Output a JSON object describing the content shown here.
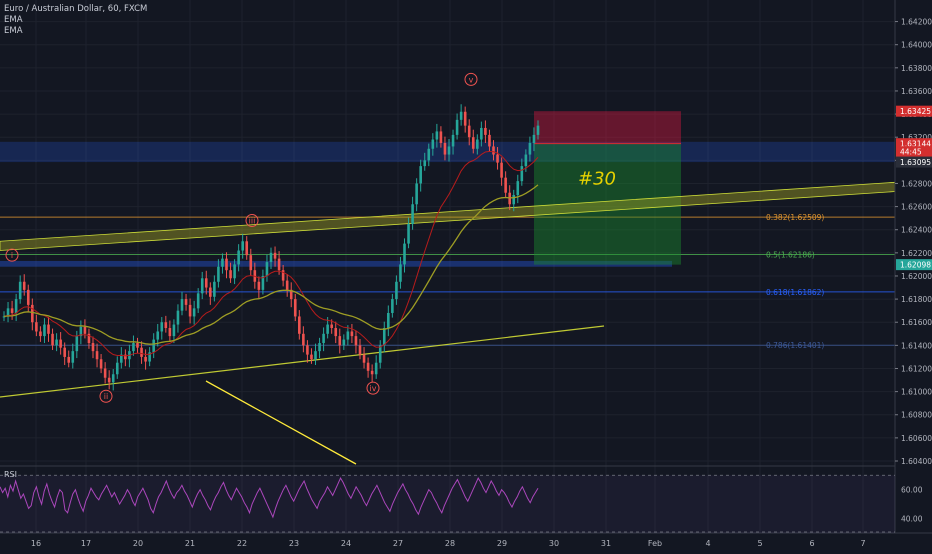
{
  "chart_data": {
    "type": "candlestick",
    "symbol_title": "Euro / Australian Dollar, 60, FXCM",
    "indicators": [
      "EMA",
      "EMA"
    ],
    "y_ticks": [
      "1.64200",
      "1.64000",
      "1.63800",
      "1.63600",
      "1.63400",
      "1.63200",
      "1.63000",
      "1.62800",
      "1.62600",
      "1.62400",
      "1.62200",
      "1.62000",
      "1.61800",
      "1.61600",
      "1.61400",
      "1.61200",
      "1.61000",
      "1.60800",
      "1.60600",
      "1.60400"
    ],
    "y_range": [
      1.604,
      1.643
    ],
    "x_ticks": [
      "16",
      "17",
      "20",
      "21",
      "22",
      "23",
      "24",
      "27",
      "28",
      "29",
      "30",
      "31",
      "Feb",
      "4",
      "5",
      "6",
      "7"
    ],
    "price_labels": [
      {
        "value": "1.63425",
        "color": "#d32f2f",
        "price": 1.63425
      },
      {
        "value": "1.63144",
        "color": "#d32f2f",
        "price": 1.63144
      },
      {
        "value": "44:45",
        "color": "#d32f2f",
        "price": 1.63075
      },
      {
        "value": "1.63095",
        "color": "#2a2e39",
        "price": 1.62985
      },
      {
        "value": "1.62098",
        "color": "#26a69a",
        "price": 1.62098
      }
    ],
    "fib_levels": [
      {
        "label": "0.382(1.62509)",
        "price": 1.62509,
        "color": "#e0952f"
      },
      {
        "label": "0.5(1.62186)",
        "price": 1.62186,
        "color": "#4caf50"
      },
      {
        "label": "0.618(1.61862)",
        "price": 1.61862,
        "color": "#2962ff"
      },
      {
        "label": "0.786(1.61401)",
        "price": 1.61401,
        "color": "#3d5a99"
      }
    ],
    "wave_labels": [
      "i",
      "ii",
      "iii",
      "iv",
      "v"
    ],
    "trade_label": "#30",
    "rsi": {
      "label": "RSI",
      "ticks": [
        "60.00",
        "40.00"
      ],
      "range": [
        30,
        75
      ],
      "values": [
        62,
        58,
        61,
        55,
        63,
        59,
        66,
        60,
        54,
        57,
        52,
        47,
        49,
        58,
        62,
        55,
        50,
        59,
        64,
        57,
        52,
        48,
        55,
        60,
        58,
        46,
        44,
        51,
        57,
        60,
        54,
        49,
        45,
        52,
        56,
        61,
        58,
        55,
        53,
        57,
        60,
        63,
        59,
        55,
        58,
        54,
        50,
        53,
        56,
        60,
        57,
        52,
        49,
        55,
        58,
        61,
        57,
        53,
        47,
        44,
        50,
        55,
        58,
        62,
        66,
        61,
        57,
        54,
        58,
        60,
        63,
        59,
        56,
        52,
        48,
        53,
        57,
        60,
        56,
        53,
        49,
        46,
        51,
        55,
        58,
        62,
        65,
        60,
        56,
        53,
        57,
        61,
        58,
        55,
        51,
        48,
        44,
        50,
        54,
        58,
        61,
        57,
        53,
        49,
        45,
        41,
        47,
        52,
        56,
        60,
        63,
        59,
        55,
        52,
        56,
        60,
        63,
        66,
        61,
        57,
        53,
        50,
        47,
        52,
        55,
        58,
        62,
        59,
        56,
        60,
        64,
        68,
        65,
        61,
        57,
        54,
        58,
        62,
        59,
        56,
        52,
        49,
        53,
        57,
        60,
        63,
        59,
        55,
        51,
        48,
        45,
        50,
        54,
        58,
        61,
        64,
        60,
        57,
        53,
        50,
        46,
        43,
        48,
        52,
        56,
        60,
        58,
        54,
        51,
        47,
        44,
        49,
        53,
        57,
        61,
        64,
        67,
        63,
        59,
        55,
        52,
        56,
        60,
        64,
        68,
        65,
        61,
        58,
        62,
        66,
        63,
        59,
        56,
        60,
        58,
        55,
        51,
        48,
        52,
        55,
        59,
        62,
        58,
        54,
        51,
        55,
        58,
        61
      ]
    },
    "price_series": [
      1.6165,
      1.6172,
      1.6168,
      1.618,
      1.6195,
      1.6188,
      1.6175,
      1.616,
      1.6152,
      1.6148,
      1.6158,
      1.615,
      1.614,
      1.6145,
      1.6138,
      1.613,
      1.6125,
      1.6135,
      1.6148,
      1.6156,
      1.615,
      1.6142,
      1.6135,
      1.6128,
      1.612,
      1.6112,
      1.6108,
      1.6115,
      1.6125,
      1.6132,
      1.6128,
      1.6135,
      1.6142,
      1.6138,
      1.613,
      1.6126,
      1.6134,
      1.6145,
      1.6152,
      1.616,
      1.6155,
      1.6148,
      1.6158,
      1.617,
      1.618,
      1.6175,
      1.6165,
      1.6172,
      1.6185,
      1.6198,
      1.619,
      1.6182,
      1.6195,
      1.6208,
      1.6215,
      1.6205,
      1.6198,
      1.621,
      1.6222,
      1.623,
      1.6218,
      1.6205,
      1.6195,
      1.6188,
      1.62,
      1.6212,
      1.622,
      1.6215,
      1.6205,
      1.6196,
      1.6188,
      1.618,
      1.6165,
      1.615,
      1.614,
      1.6132,
      1.6128,
      1.6135,
      1.6142,
      1.615,
      1.6158,
      1.6155,
      1.6148,
      1.614,
      1.6145,
      1.6152,
      1.6148,
      1.614,
      1.6132,
      1.6125,
      1.6118,
      1.6115,
      1.6125,
      1.614,
      1.6155,
      1.6168,
      1.618,
      1.6195,
      1.621,
      1.6228,
      1.6245,
      1.6262,
      1.628,
      1.6295,
      1.63,
      1.631,
      1.6318,
      1.6325,
      1.6315,
      1.6305,
      1.6312,
      1.6322,
      1.6335,
      1.6342,
      1.633,
      1.632,
      1.631,
      1.6318,
      1.6328,
      1.6322,
      1.6312,
      1.6305,
      1.6298,
      1.6285,
      1.6272,
      1.6262,
      1.627,
      1.6282,
      1.6295,
      1.6305,
      1.6315,
      1.6322,
      1.633
    ]
  }
}
